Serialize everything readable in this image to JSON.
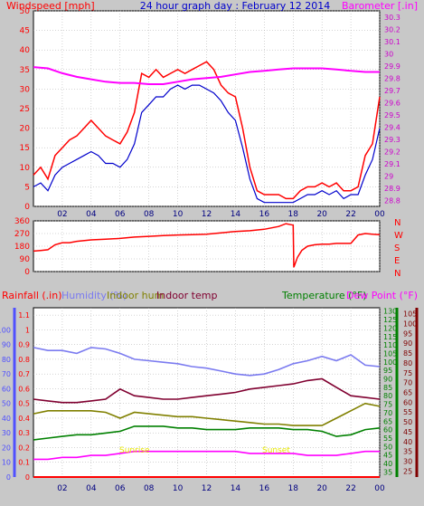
{
  "colors": {
    "background": "#c8c8c8",
    "plot_bg": "#ffffff",
    "grid": "#aaaaaa",
    "wind": "#ff0000",
    "gust": "#0000cc",
    "barometer": "#ff00ff",
    "direction": "#ff0000",
    "rain": "#ff0000",
    "humidity": "#7b7bf0",
    "indoor_hum": "#808000",
    "indoor_temp": "#800030",
    "temperature": "#008000",
    "dew_point": "#ff00ff",
    "dew_axis": "#800000",
    "hum_axis": "#5050ff",
    "x_tick": "#000080"
  },
  "chart_data": [
    {
      "type": "line",
      "title": "24 hour graph day : February 12 2014",
      "left_axis_label": "Windspeed [mph]",
      "right_axis_label": "Barometer [.in]",
      "x_ticks": [
        "02",
        "04",
        "06",
        "08",
        "10",
        "12",
        "14",
        "16",
        "18",
        "20",
        "22",
        "00"
      ],
      "ylim_left": [
        0,
        50
      ],
      "left_ticks": [
        "0",
        "5",
        "10",
        "15",
        "20",
        "25",
        "30",
        "35",
        "40",
        "45",
        "50"
      ],
      "ylim_right": [
        28.75,
        30.35
      ],
      "right_ticks": [
        "28.8",
        "28.9",
        "29",
        "29.1",
        "29.2",
        "29.3",
        "29.4",
        "29.5",
        "29.6",
        "29.7",
        "29.8",
        "29.9",
        "30",
        "30.1",
        "30.2",
        "30.3"
      ],
      "series": [
        {
          "key": "gust",
          "x": [
            0,
            0.5,
            1,
            1.5,
            2,
            2.5,
            3,
            3.5,
            4,
            4.5,
            5,
            5.5,
            6,
            6.5,
            7,
            7.5,
            8,
            8.5,
            9,
            9.5,
            10,
            10.5,
            11,
            11.5,
            12,
            12.5,
            13,
            13.5,
            14,
            14.5,
            15,
            15.5,
            16,
            16.5,
            17,
            17.5,
            18,
            18.5,
            19,
            19.5,
            20,
            20.5,
            21,
            21.5,
            22,
            22.5,
            23,
            23.5,
            24
          ],
          "y": [
            8,
            10,
            7,
            13,
            15,
            17,
            18,
            20,
            22,
            20,
            18,
            17,
            16,
            19,
            24,
            34,
            33,
            35,
            33,
            34,
            35,
            34,
            35,
            36,
            37,
            35,
            31,
            29,
            28,
            20,
            10,
            4,
            3,
            3,
            3,
            2,
            2,
            4,
            5,
            5,
            6,
            5,
            6,
            4,
            4,
            5,
            13,
            16,
            28
          ]
        },
        {
          "key": "wind",
          "x": [
            0,
            0.5,
            1,
            1.5,
            2,
            2.5,
            3,
            3.5,
            4,
            4.5,
            5,
            5.5,
            6,
            6.5,
            7,
            7.5,
            8,
            8.5,
            9,
            9.5,
            10,
            10.5,
            11,
            11.5,
            12,
            12.5,
            13,
            13.5,
            14,
            14.5,
            15,
            15.5,
            16,
            16.5,
            17,
            17.5,
            18,
            18.5,
            19,
            19.5,
            20,
            20.5,
            21,
            21.5,
            22,
            22.5,
            23,
            23.5,
            24
          ],
          "y": [
            5,
            6,
            4,
            8,
            10,
            11,
            12,
            13,
            14,
            13,
            11,
            11,
            10,
            12,
            16,
            24,
            26,
            28,
            28,
            30,
            31,
            30,
            31,
            31,
            30,
            29,
            27,
            24,
            22,
            15,
            7,
            2,
            1,
            1,
            1,
            1,
            1,
            2,
            3,
            3,
            4,
            3,
            4,
            2,
            3,
            3,
            8,
            12,
            20
          ]
        },
        {
          "key": "barometer",
          "x": [
            0,
            1,
            2,
            3,
            4,
            5,
            6,
            7,
            8,
            9,
            10,
            11,
            12,
            13,
            14,
            15,
            16,
            17,
            18,
            19,
            20,
            21,
            22,
            23,
            24
          ],
          "y": [
            29.89,
            29.88,
            29.84,
            29.81,
            29.79,
            29.77,
            29.76,
            29.76,
            29.75,
            29.75,
            29.77,
            29.79,
            29.8,
            29.81,
            29.83,
            29.85,
            29.86,
            29.87,
            29.88,
            29.88,
            29.88,
            29.87,
            29.86,
            29.85,
            29.85
          ]
        }
      ]
    },
    {
      "type": "line",
      "ylim": [
        0,
        360
      ],
      "y_ticks": [
        "0",
        "90",
        "180",
        "270",
        "360"
      ],
      "compass": [
        "N",
        "W",
        "S",
        "E",
        "N"
      ],
      "x_ticks": [
        "02",
        "04",
        "06",
        "08",
        "10",
        "12",
        "14",
        "16",
        "18",
        "20",
        "22",
        "00"
      ],
      "series": [
        {
          "key": "direction",
          "x": [
            0,
            0.5,
            1,
            1.5,
            2,
            2.5,
            3,
            4,
            5,
            6,
            7,
            8,
            9,
            10,
            11,
            12,
            13,
            14,
            15,
            16,
            17,
            17.5,
            18,
            18.05,
            18.3,
            18.6,
            19,
            19.5,
            20,
            20.5,
            21,
            22,
            22.5,
            23,
            23.5,
            24
          ],
          "y": [
            145,
            150,
            155,
            190,
            205,
            205,
            215,
            225,
            230,
            235,
            245,
            250,
            255,
            260,
            262,
            265,
            275,
            285,
            290,
            300,
            320,
            340,
            330,
            30,
            100,
            150,
            180,
            190,
            195,
            195,
            200,
            200,
            260,
            270,
            265,
            262
          ]
        }
      ]
    },
    {
      "type": "line",
      "labels": {
        "rainfall": "Rainfall (.in)",
        "humidity": "Humidity (%)",
        "indoor_hum": "Indoor hum",
        "indoor_temp": "Indoor temp",
        "temperature": "Temperature (°F)",
        "dew_point": "Dew Point (°F)"
      },
      "annotations": [
        "Sunrise",
        "Sunset"
      ],
      "x_ticks": [
        "02",
        "04",
        "06",
        "08",
        "10",
        "12",
        "14",
        "16",
        "18",
        "20",
        "22",
        "00"
      ],
      "rain_ticks": [
        "0",
        "0.1",
        "0.2",
        "0.3",
        "0.4",
        "0.5",
        "0.6",
        "0.7",
        "0.8",
        "0.9",
        "1",
        "1.1"
      ],
      "humidity_ticks": [
        "0",
        "10",
        "20",
        "30",
        "40",
        "50",
        "60",
        "70",
        "80",
        "90",
        "100"
      ],
      "temp_ticks": [
        "35",
        "40",
        "45",
        "50",
        "55",
        "60",
        "65",
        "70",
        "75",
        "80",
        "85",
        "90",
        "95",
        "100",
        "105",
        "110",
        "115",
        "120",
        "125",
        "130"
      ],
      "dew_ticks": [
        "25",
        "30",
        "35",
        "40",
        "45",
        "50",
        "55",
        "60",
        "65",
        "70",
        "75",
        "80",
        "85",
        "90",
        "95",
        "100",
        "105"
      ],
      "series": [
        {
          "key": "rain",
          "axis": "rain",
          "x": [
            0,
            24
          ],
          "y": [
            0,
            0
          ]
        },
        {
          "key": "humidity",
          "axis": "humidity",
          "x": [
            0,
            1,
            2,
            3,
            4,
            5,
            6,
            7,
            8,
            9,
            10,
            11,
            12,
            13,
            14,
            15,
            16,
            17,
            18,
            19,
            20,
            21,
            22,
            23,
            24
          ],
          "y": [
            88,
            86,
            86,
            84,
            88,
            87,
            84,
            80,
            79,
            78,
            77,
            75,
            74,
            72,
            70,
            69,
            70,
            73,
            77,
            79,
            82,
            79,
            83,
            76,
            75
          ]
        },
        {
          "key": "indoor_temp",
          "axis": "temp",
          "x": [
            0,
            1,
            2,
            3,
            4,
            5,
            6,
            7,
            8,
            9,
            10,
            11,
            12,
            13,
            14,
            15,
            16,
            17,
            18,
            19,
            20,
            21,
            22,
            23,
            24
          ],
          "y": [
            78,
            77,
            76,
            76,
            77,
            78,
            84,
            80,
            79,
            78,
            78,
            79,
            80,
            81,
            82,
            84,
            85,
            86,
            87,
            89,
            90,
            85,
            80,
            79,
            78
          ]
        },
        {
          "key": "indoor_hum",
          "axis": "humidity",
          "x": [
            0,
            1,
            2,
            3,
            4,
            5,
            6,
            7,
            8,
            9,
            10,
            11,
            12,
            13,
            14,
            15,
            16,
            17,
            18,
            19,
            20,
            21,
            22,
            23,
            24
          ],
          "y": [
            43,
            45,
            45,
            45,
            45,
            44,
            40,
            44,
            43,
            42,
            41,
            41,
            40,
            39,
            38,
            37,
            36,
            36,
            35,
            35,
            35,
            40,
            45,
            50,
            48
          ]
        },
        {
          "key": "temperature",
          "axis": "temp",
          "x": [
            0,
            1,
            2,
            3,
            4,
            5,
            6,
            7,
            8,
            9,
            10,
            11,
            12,
            13,
            14,
            15,
            16,
            17,
            18,
            19,
            20,
            21,
            22,
            23,
            24
          ],
          "y": [
            54,
            55,
            56,
            57,
            57,
            58,
            59,
            62,
            62,
            62,
            61,
            61,
            60,
            60,
            60,
            61,
            61,
            61,
            60,
            60,
            59,
            56,
            57,
            60,
            61
          ]
        },
        {
          "key": "dew_point",
          "axis": "dew",
          "x": [
            0,
            1,
            2,
            3,
            4,
            5,
            6,
            7,
            8,
            9,
            10,
            11,
            12,
            13,
            14,
            15,
            16,
            17,
            18,
            19,
            20,
            21,
            22,
            23,
            24
          ],
          "y": [
            31,
            31,
            32,
            32,
            33,
            33,
            34,
            35,
            35,
            35,
            35,
            35,
            35,
            35,
            35,
            34,
            34,
            34,
            34,
            33,
            33,
            33,
            34,
            35,
            35
          ]
        }
      ]
    }
  ]
}
